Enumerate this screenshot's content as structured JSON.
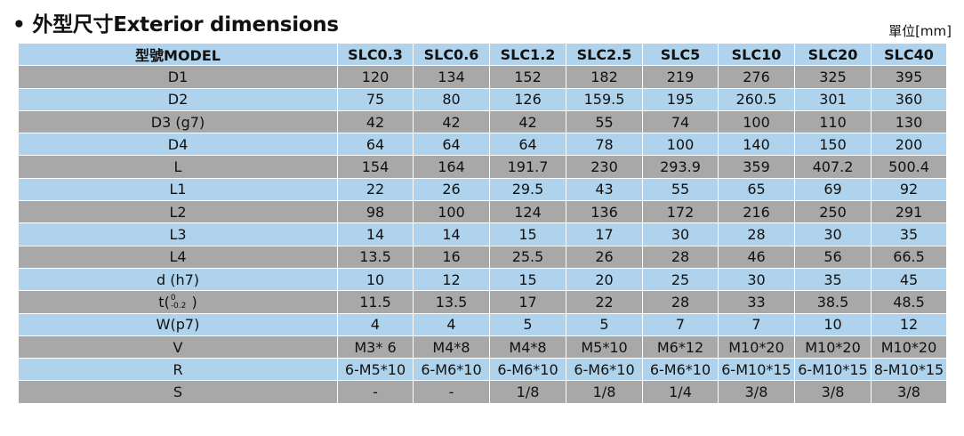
{
  "page": {
    "bullet": "•",
    "title": "外型尺寸Exterior dimensions",
    "unit": "單位[mm]"
  },
  "table": {
    "header": [
      "型號MODEL",
      "SLC0.3",
      "SLC0.6",
      "SLC1.2",
      "SLC2.5",
      "SLC5",
      "SLC10",
      "SLC20",
      "SLC40"
    ],
    "rows": [
      {
        "label": "D1",
        "cells": [
          "120",
          "134",
          "152",
          "182",
          "219",
          "276",
          "325",
          "395"
        ]
      },
      {
        "label": "D2",
        "cells": [
          "75",
          "80",
          "126",
          "159.5",
          "195",
          "260.5",
          "301",
          "360"
        ]
      },
      {
        "label": "D3 (g7)",
        "cells": [
          "42",
          "42",
          "42",
          "55",
          "74",
          "100",
          "110",
          "130"
        ]
      },
      {
        "label": "D4",
        "cells": [
          "64",
          "64",
          "64",
          "78",
          "100",
          "140",
          "150",
          "200"
        ]
      },
      {
        "label": "L",
        "cells": [
          "154",
          "164",
          "191.7",
          "230",
          "293.9",
          "359",
          "407.2",
          "500.4"
        ]
      },
      {
        "label": "L1",
        "cells": [
          "22",
          "26",
          "29.5",
          "43",
          "55",
          "65",
          "69",
          "92"
        ]
      },
      {
        "label": "L2",
        "cells": [
          "98",
          "100",
          "124",
          "136",
          "172",
          "216",
          "250",
          "291"
        ]
      },
      {
        "label": "L3",
        "cells": [
          "14",
          "14",
          "15",
          "17",
          "30",
          "28",
          "30",
          "35"
        ]
      },
      {
        "label": "L4",
        "cells": [
          "13.5",
          "16",
          "25.5",
          "26",
          "28",
          "46",
          "56",
          "66.5"
        ]
      },
      {
        "label": "d (h7)",
        "cells": [
          "10",
          "12",
          "15",
          "20",
          "25",
          "30",
          "35",
          "45"
        ]
      },
      {
        "label": "t",
        "tol_upper": "0",
        "tol_lower": "-0.2",
        "cells": [
          "11.5",
          "13.5",
          "17",
          "22",
          "28",
          "33",
          "38.5",
          "48.5"
        ]
      },
      {
        "label": "W(p7)",
        "cells": [
          "4",
          "4",
          "5",
          "5",
          "7",
          "7",
          "10",
          "12"
        ]
      },
      {
        "label": "V",
        "cells": [
          "M3* 6",
          "M4*8",
          "M4*8",
          "M5*10",
          "M6*12",
          "M10*20",
          "M10*20",
          "M10*20"
        ]
      },
      {
        "label": "R",
        "cells": [
          "6-M5*10",
          "6-M6*10",
          "6-M6*10",
          "6-M6*10",
          "6-M6*10",
          "6-M10*15",
          "6-M10*15",
          "8-M10*15"
        ]
      },
      {
        "label": "S",
        "cells": [
          "-",
          "-",
          "1/8",
          "1/8",
          "1/4",
          "3/8",
          "3/8",
          "3/8"
        ]
      }
    ]
  },
  "colors": {
    "row_blue": "#afd3ec",
    "row_gray": "#a8a8a8"
  }
}
